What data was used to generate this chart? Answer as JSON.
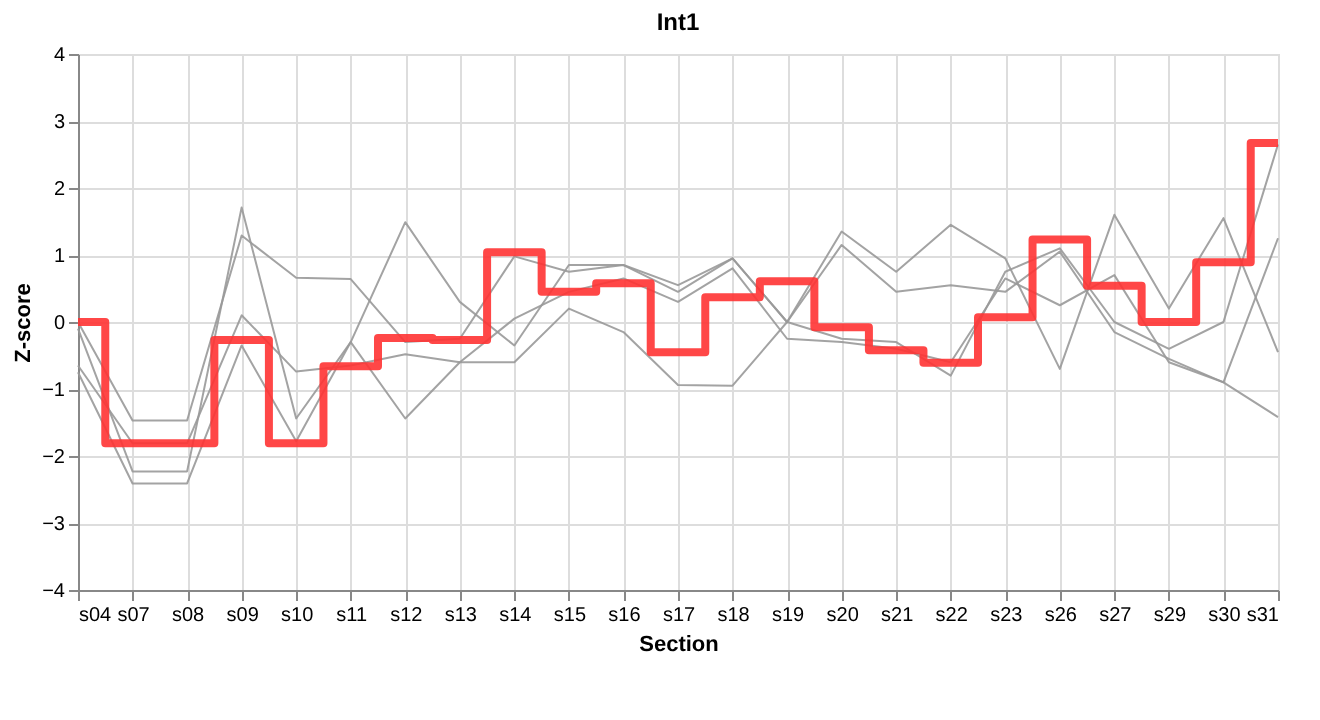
{
  "chart_data": {
    "type": "line",
    "title": "Int1",
    "xlabel": "Section",
    "ylabel": "Z-score",
    "categories": [
      "s04",
      "s07",
      "s08",
      "s09",
      "s10",
      "s11",
      "s12",
      "s13",
      "s14",
      "s15",
      "s16",
      "s17",
      "s18",
      "s19",
      "s20",
      "s21",
      "s22",
      "s23",
      "s26",
      "s27",
      "s29",
      "s30",
      "s31"
    ],
    "series": [
      {
        "color": "#999999",
        "values": [
          0,
          -1.47,
          -1.47,
          1.29,
          0.66,
          0.64,
          -0.3,
          -0.25,
          0.98,
          0.75,
          0.85,
          0.55,
          0.95,
          0.0,
          1.35,
          0.75,
          1.45,
          0.95,
          -0.7,
          1.6,
          0.2,
          1.55,
          -0.45
        ]
      },
      {
        "color": "#999999",
        "values": [
          -0.1,
          -2.23,
          -2.23,
          1.71,
          -1.44,
          -0.3,
          1.49,
          0.3,
          -0.35,
          0.85,
          0.85,
          0.45,
          0.95,
          0.0,
          1.15,
          0.45,
          0.55,
          0.45,
          1.05,
          -0.15,
          -0.55,
          -0.9,
          1.25
        ]
      },
      {
        "color": "#999999",
        "values": [
          -0.65,
          -1.81,
          -1.81,
          0.1,
          -0.74,
          -0.65,
          -0.48,
          -0.6,
          -0.6,
          0.2,
          -0.15,
          -0.94,
          -0.95,
          0.0,
          -0.25,
          -0.3,
          -0.8,
          0.75,
          1.1,
          0.0,
          -0.4,
          0.0,
          2.65
        ]
      },
      {
        "color": "#999999",
        "values": [
          -0.75,
          -2.41,
          -2.41,
          -0.35,
          -1.78,
          -0.3,
          -1.44,
          -0.6,
          0.05,
          0.45,
          0.65,
          0.3,
          0.8,
          -0.25,
          -0.3,
          -0.4,
          -0.6,
          0.65,
          0.25,
          0.7,
          -0.6,
          -0.9,
          -1.42
        ]
      },
      {
        "type": "step",
        "color": "#ff3333",
        "values": [
          0,
          -1.81,
          -1.81,
          -0.27,
          -1.81,
          -0.66,
          -0.24,
          -0.27,
          1.04,
          0.45,
          0.58,
          -0.45,
          0.37,
          0.61,
          -0.08,
          -0.42,
          -0.61,
          0.07,
          1.23,
          0.54,
          0,
          0.89,
          2.67
        ]
      }
    ],
    "ylim": [
      -4,
      4
    ],
    "yticks": [
      -4,
      -3,
      -2,
      -1,
      0,
      1,
      2,
      3,
      4
    ],
    "grid": true,
    "marker": "none",
    "line_style": "solid"
  }
}
